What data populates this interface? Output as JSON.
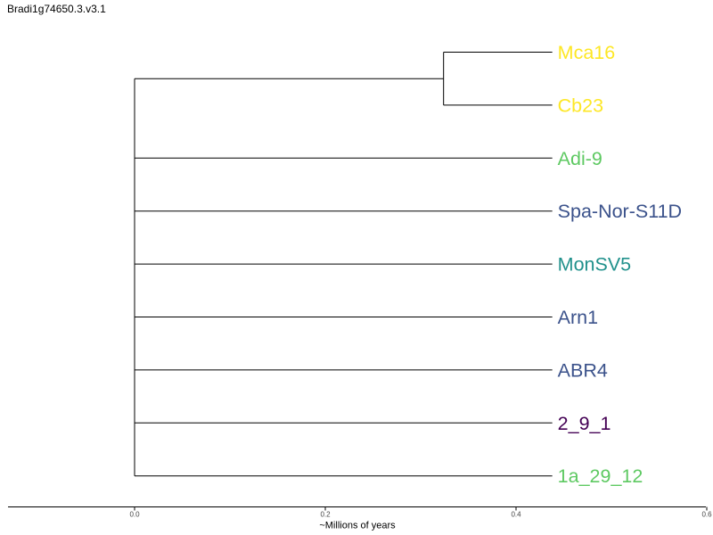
{
  "title": "Bradi1g74650.3.v3.1",
  "chart_data": {
    "type": "dendrogram",
    "xlabel": "~Millions of years",
    "xlim": [
      -0.133,
      0.6
    ],
    "ticks": [
      {
        "value": 0.0,
        "label": "0.0"
      },
      {
        "value": 0.2,
        "label": "0.2"
      },
      {
        "value": 0.4,
        "label": "0.4"
      },
      {
        "value": 0.6,
        "label": "0.6"
      }
    ],
    "tip_age": 0.438,
    "leaves": [
      {
        "name": "Mca16",
        "color": "#fde725"
      },
      {
        "name": "Cb23",
        "color": "#fde725"
      },
      {
        "name": "Adi-9",
        "color": "#5ec962"
      },
      {
        "name": "Spa-Nor-S11D",
        "color": "#3b528b"
      },
      {
        "name": "MonSV5",
        "color": "#21918c"
      },
      {
        "name": "Arn1",
        "color": "#3b528b"
      },
      {
        "name": "ABR4",
        "color": "#3b528b"
      },
      {
        "name": "2_9_1",
        "color": "#440154"
      },
      {
        "name": "1a_29_12",
        "color": "#5ec962"
      }
    ],
    "clades": [
      {
        "node_age": 0.324,
        "members": [
          "Mca16",
          "Cb23"
        ]
      }
    ],
    "root_age": 0.0
  }
}
